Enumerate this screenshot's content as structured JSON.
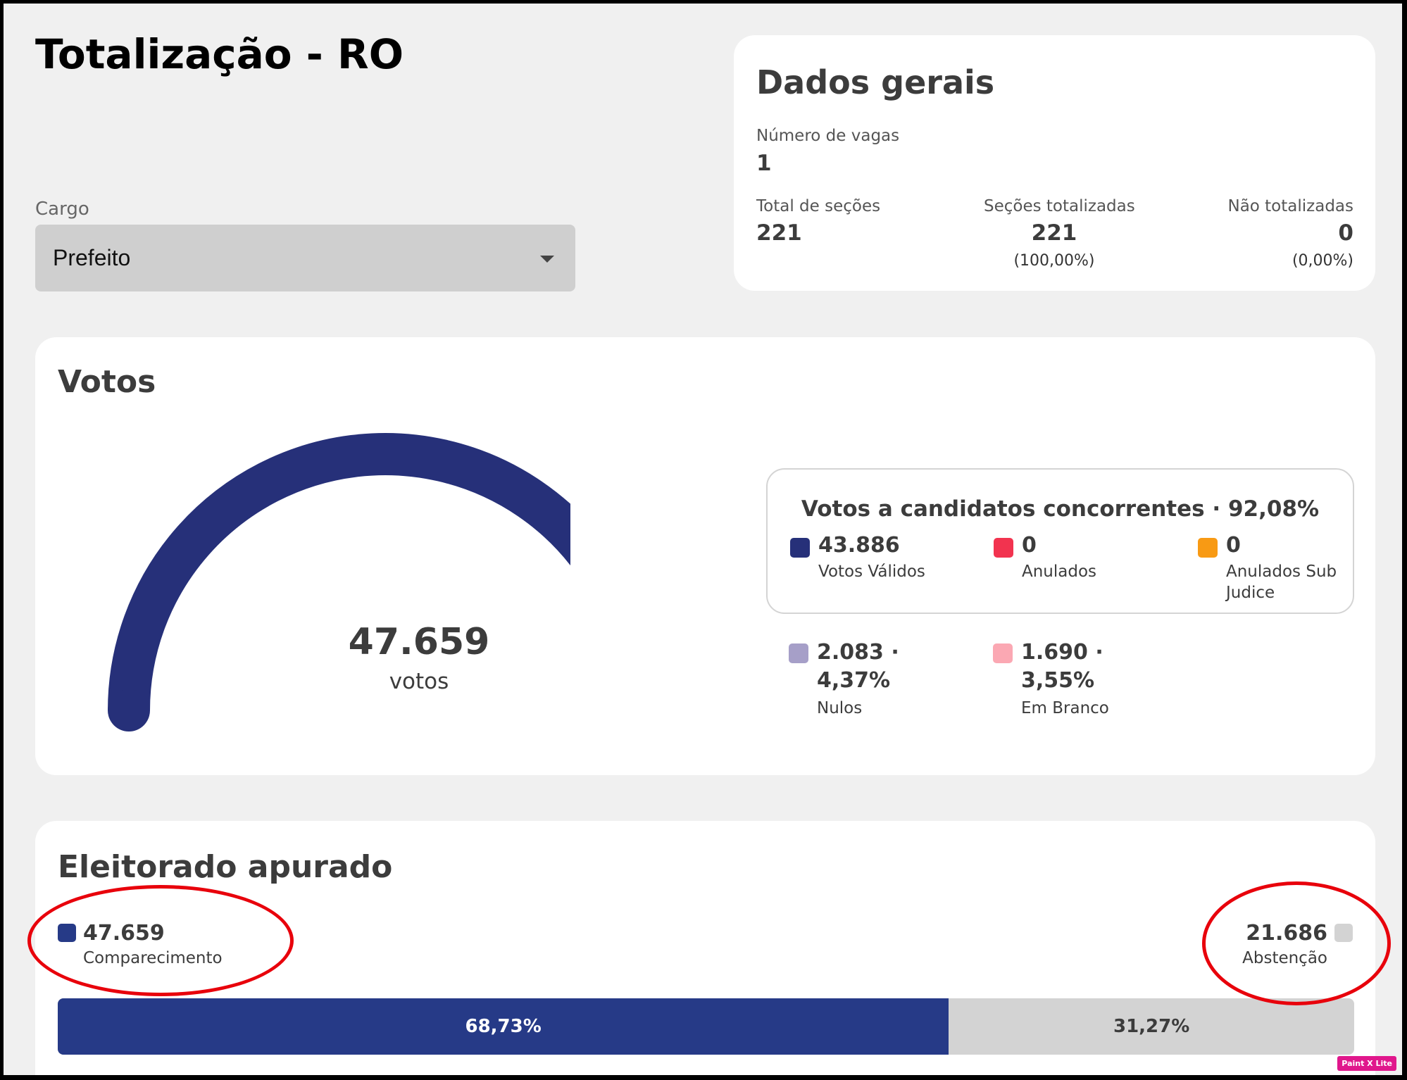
{
  "page": {
    "title": "Totalização - RO"
  },
  "cargo": {
    "label": "Cargo",
    "selected": "Prefeito"
  },
  "dados_gerais": {
    "title": "Dados gerais",
    "vagas_label": "Número de vagas",
    "vagas_value": "1",
    "total_secoes_label": "Total de seções",
    "total_secoes_value": "221",
    "totalizadas_label": "Seções totalizadas",
    "totalizadas_value": "221",
    "totalizadas_pct": "(100,00%)",
    "nao_totalizadas_label": "Não totalizadas",
    "nao_totalizadas_value": "0",
    "nao_totalizadas_pct": "(0,00%)"
  },
  "votos": {
    "title": "Votos",
    "total": "47.659",
    "unit": "votos",
    "concorrentes_title": "Votos a candidatos concorrentes · 92,08%",
    "validos": {
      "value": "43.886",
      "label": "Votos Válidos",
      "color": "#263079"
    },
    "anulados": {
      "value": "0",
      "label": "Anulados",
      "color": "#f2334f"
    },
    "anulados_sub": {
      "value": "0",
      "label": "Anulados Sub Judice",
      "color": "#f89a14"
    },
    "nulos": {
      "value": "2.083 · 4,37%",
      "label": "Nulos",
      "color": "#a69fc8"
    },
    "branco": {
      "value": "1.690 · 3,55%",
      "label": "Em Branco",
      "color": "#fba8b3"
    }
  },
  "gauge": {
    "segments": [
      {
        "name": "Votos Válidos",
        "value": 43886,
        "color": "#263079"
      },
      {
        "name": "Nulos",
        "value": 2083,
        "color": "#a69fc8"
      },
      {
        "name": "Em Branco",
        "value": 1690,
        "color": "#fba8b3"
      }
    ]
  },
  "eleitorado": {
    "title": "Eleitorado apurado",
    "comparecimento": {
      "value": "47.659",
      "label": "Comparecimento",
      "color": "#263a87",
      "pct": 68.73,
      "pct_label": "68,73%"
    },
    "abstencao": {
      "value": "21.686",
      "label": "Abstenção",
      "color": "#d3d3d3",
      "pct": 31.27,
      "pct_label": "31,27%"
    }
  },
  "watermark": "Paint X Lite"
}
